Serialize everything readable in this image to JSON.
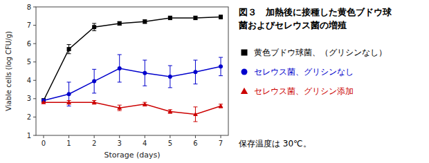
{
  "chart_data": {
    "type": "line",
    "title": "図３　加熱後に接種した黄色ブドウ球",
    "subtitle": "菌およびセレウス菌の増殖",
    "x_label": "Storage (days)",
    "y_label": "Viable cells (log CFU/g)",
    "annotations": [
      "保存温度は 30℃。"
    ],
    "x": [
      0,
      1,
      2,
      3,
      4,
      5,
      6,
      7
    ],
    "series": [
      {
        "name": "黄色ブドウ球菌、（グリシンなし）",
        "color": "#000000",
        "marker": "square",
        "values": [
          2.9,
          5.7,
          6.9,
          7.1,
          7.2,
          7.4,
          7.4,
          7.45
        ],
        "errors": [
          0.1,
          0.25,
          0.2,
          0.1,
          0.1,
          0.1,
          0.1,
          0.1
        ]
      },
      {
        "name": "セレウス菌、グリシンなし",
        "color": "#0000cc",
        "marker": "circle",
        "values": [
          2.9,
          3.25,
          3.95,
          4.65,
          4.4,
          4.2,
          4.45,
          4.75
        ],
        "errors": [
          0.0,
          0.65,
          0.65,
          0.75,
          0.7,
          0.6,
          0.65,
          0.5
        ]
      },
      {
        "name": "セレウス菌、グリシン添加",
        "color": "#cc0000",
        "marker": "triangle",
        "values": [
          2.8,
          2.8,
          2.8,
          2.5,
          2.7,
          2.3,
          2.15,
          2.6
        ],
        "errors": [
          0.0,
          0.1,
          0.1,
          0.15,
          0.1,
          0.1,
          0.4,
          0.1
        ]
      }
    ],
    "xlim": [
      -0.3,
      7.3
    ],
    "xticks": [
      0,
      1,
      2,
      3,
      4,
      5,
      6,
      7
    ],
    "ylim": [
      1,
      8
    ],
    "yticks": [
      1,
      2,
      3,
      4,
      5,
      6,
      7,
      8
    ],
    "grid": false,
    "legend": "right"
  }
}
